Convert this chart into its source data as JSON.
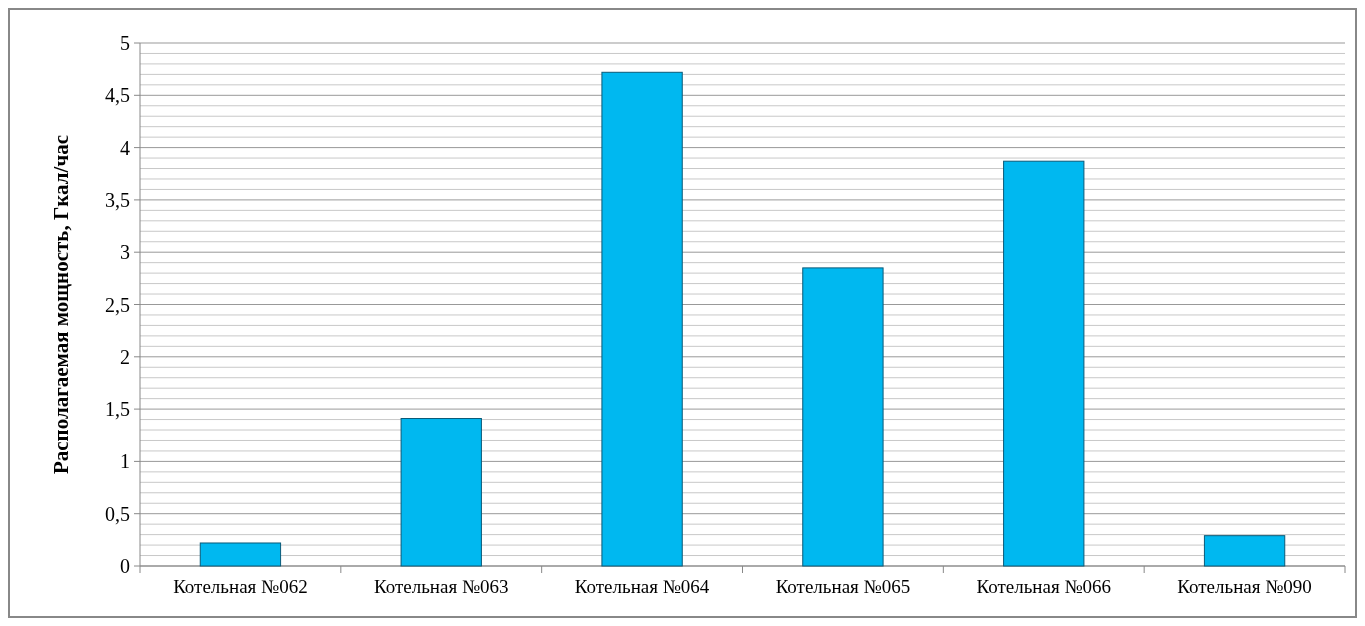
{
  "chart_data": {
    "type": "bar",
    "ylabel": "Располагаемая мощность, Гкал/час",
    "categories": [
      "Котельная №062",
      "Котельная №063",
      "Котельная №064",
      "Котельная №065",
      "Котельная №066",
      "Котельная №090"
    ],
    "values": [
      0.22,
      1.41,
      4.72,
      2.85,
      3.87,
      0.29
    ],
    "color": "#00b8f0",
    "ylim": [
      0,
      5
    ],
    "yticks": [
      0,
      {
        "value": 0.1,
        "label": null
      },
      {
        "value": 0.2,
        "label": null
      },
      {
        "value": 0.3,
        "label": null
      },
      {
        "value": 0.4,
        "label": null
      },
      {
        "value": 0.5,
        "label": "0,5"
      },
      {
        "value": 0.6,
        "label": null
      },
      {
        "value": 0.7,
        "label": null
      },
      {
        "value": 0.8,
        "label": null
      },
      {
        "value": 0.9,
        "label": null
      },
      1,
      {
        "value": 1.1,
        "label": null
      },
      {
        "value": 1.2,
        "label": null
      },
      {
        "value": 1.3,
        "label": null
      },
      {
        "value": 1.4,
        "label": null
      },
      {
        "value": 1.5,
        "label": "1,5"
      },
      {
        "value": 1.6,
        "label": null
      },
      {
        "value": 1.7,
        "label": null
      },
      {
        "value": 1.8,
        "label": null
      },
      {
        "value": 1.9,
        "label": null
      },
      2,
      {
        "value": 2.1,
        "label": null
      },
      {
        "value": 2.2,
        "label": null
      },
      {
        "value": 2.3,
        "label": null
      },
      {
        "value": 2.4,
        "label": null
      },
      {
        "value": 2.5,
        "label": "2,5"
      },
      {
        "value": 2.6,
        "label": null
      },
      {
        "value": 2.7,
        "label": null
      },
      {
        "value": 2.8,
        "label": null
      },
      {
        "value": 2.9,
        "label": null
      },
      3,
      {
        "value": 3.1,
        "label": null
      },
      {
        "value": 3.2,
        "label": null
      },
      {
        "value": 3.3,
        "label": null
      },
      {
        "value": 3.4,
        "label": null
      },
      {
        "value": 3.5,
        "label": "3,5"
      },
      {
        "value": 3.6,
        "label": null
      },
      {
        "value": 3.7,
        "label": null
      },
      {
        "value": 3.8,
        "label": null
      },
      {
        "value": 3.9,
        "label": null
      },
      4,
      {
        "value": 4.1,
        "label": null
      },
      {
        "value": 4.2,
        "label": null
      },
      {
        "value": 4.3,
        "label": null
      },
      {
        "value": 4.4,
        "label": null
      },
      {
        "value": 4.5,
        "label": "4,5"
      },
      {
        "value": 4.6,
        "label": null
      },
      {
        "value": 4.7,
        "label": null
      },
      {
        "value": 4.8,
        "label": null
      },
      {
        "value": 4.9,
        "label": null
      },
      5
    ],
    "grid": "y"
  }
}
